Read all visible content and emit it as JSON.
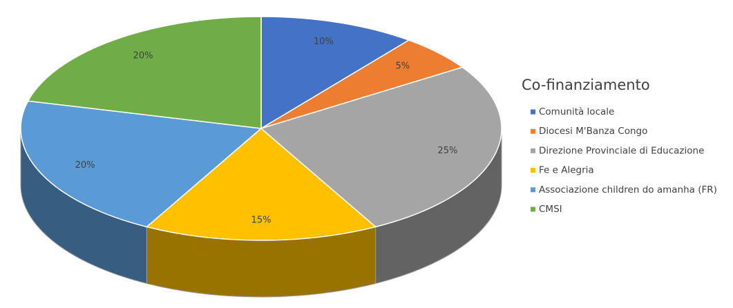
{
  "chart_data": {
    "type": "pie",
    "title": "Co-finanziamento",
    "categories": [
      "Comunità locale",
      "Diocesi M'Banza Congo",
      "Direzione Provinciale di Educazione",
      "Fe e Alegria",
      "Associazione children do amanha (FR)",
      "CMSI"
    ],
    "values": [
      10,
      5,
      25,
      15,
      20,
      20
    ],
    "value_labels": [
      "10%",
      "5%",
      "25%",
      "15%",
      "20%",
      "20%"
    ],
    "colors": [
      "#4472c4",
      "#ed7d31",
      "#a5a5a5",
      "#ffc000",
      "#5b9bd5",
      "#70ad47"
    ],
    "legend": "right"
  }
}
